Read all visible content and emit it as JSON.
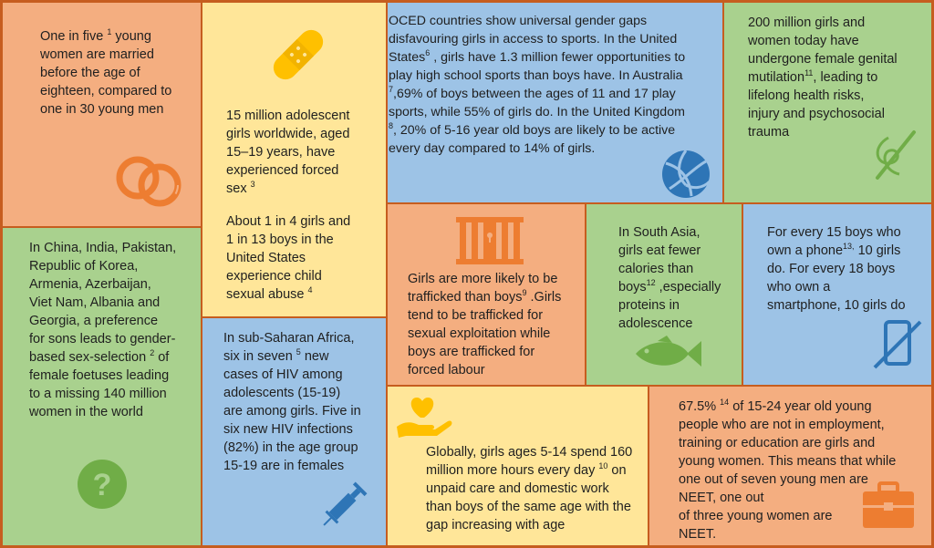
{
  "panels": {
    "child_marriage": {
      "before": "One in five ",
      "ref": "1",
      "after": " young\nwomen are married\nbefore the age of\neighteen, compared to\none in 30 young men"
    },
    "forced_sex": {
      "before": "15 million adolescent\ngirls worldwide, aged\n15–19 years, have\nexperienced forced\nsex ",
      "ref": "3",
      "after": ""
    },
    "child_abuse": {
      "before": "About 1 in 4 girls and\n1 in 13 boys in the\nUnited States\nexperience child\nsexual abuse ",
      "ref": "4",
      "after": ""
    },
    "sports": {
      "part1": "OCED countries show universal gender gaps\ndisfavouring girls in access to sports. In the United\nStates",
      "ref1": "6",
      "part2": " , girls have 1.3 million fewer opportunities to\nplay high school sports than boys have. In Australia\n",
      "ref2": "7",
      "part3": ",69% of boys between the ages of 11 and 17 play\nsports, while 55% of girls do. In the United Kingdom\n",
      "ref3": "8",
      "part4": ", 20% of 5-16 year old boys are likely to be active\nevery day compared to 14% of girls."
    },
    "fgm": {
      "before": "200 million girls and\nwomen today have\nundergone female genital\nmutilation",
      "ref": "11",
      "after": ", leading to\nlifelong health risks,\ninjury and psychosocial\ntrauma"
    },
    "son_preference": {
      "before": "In China, India, Pakistan,\nRepublic of Korea,\nArmenia, Azerbaijan,\nViet Nam, Albania and\nGeorgia, a preference\nfor sons leads to gender-\nbased sex-selection ",
      "ref": "2",
      "after": " of\nfemale foetuses leading\nto a missing 140 million\nwomen in the world"
    },
    "trafficking": {
      "before": "Girls are more likely to be\ntrafficked than boys",
      "ref": "9",
      "after": " .Girls\ntend to be trafficked for\nsexual exploitation while\nboys are trafficked for\nforced labour"
    },
    "nutrition": {
      "before": "In South Asia,\ngirls eat fewer\ncalories than\nboys",
      "ref": "12",
      "after": " ,especially\nproteins in\nadolescence"
    },
    "phones": {
      "before": "For every 15 boys who\nown a phone",
      "ref": "13,",
      "after": " 10 girls\ndo. For every 18 boys\nwho own a\nsmartphone, 10 girls do"
    },
    "hiv": {
      "before": "In sub-Saharan Africa,\nsix in seven ",
      "ref": "5",
      "after": " new\ncases of HIV among\nadolescents (15-19)\nare among girls. Five in\nsix new HIV infections\n(82%) in the age group\n15-19 are in females"
    },
    "unpaid_care": {
      "before": "Globally, girls ages 5-14 spend 160\nmillion more hours every day ",
      "ref": "10",
      "after": " on\nunpaid care and domestic work\nthan boys of the same age with the\ngap increasing with age"
    },
    "neet": {
      "before": "67.5% ",
      "ref": "14",
      "after": " of 15-24 year old young\npeople who are not in employment,\ntraining or education are girls and\nyoung women. This means that while\none out of seven young men are\nNEET, one out\nof three young women are\nNEET."
    }
  },
  "colors": {
    "border": "#c65d1f",
    "orange": "#f4ae80",
    "yellow": "#ffe699",
    "blue": "#9dc3e6",
    "green": "#a9d18e",
    "icon_orange": "#ed7d31",
    "icon_green": "#70ad47",
    "icon_blue": "#2e75b6",
    "icon_yellow": "#ffc000"
  },
  "icons": [
    "rings-icon",
    "bandage-icon",
    "volleyball-icon",
    "needle-thread-icon",
    "question-icon",
    "prison-bars-icon",
    "fish-icon",
    "phone-crossed-icon",
    "syringe-icon",
    "heart-hand-icon",
    "briefcase-icon"
  ]
}
